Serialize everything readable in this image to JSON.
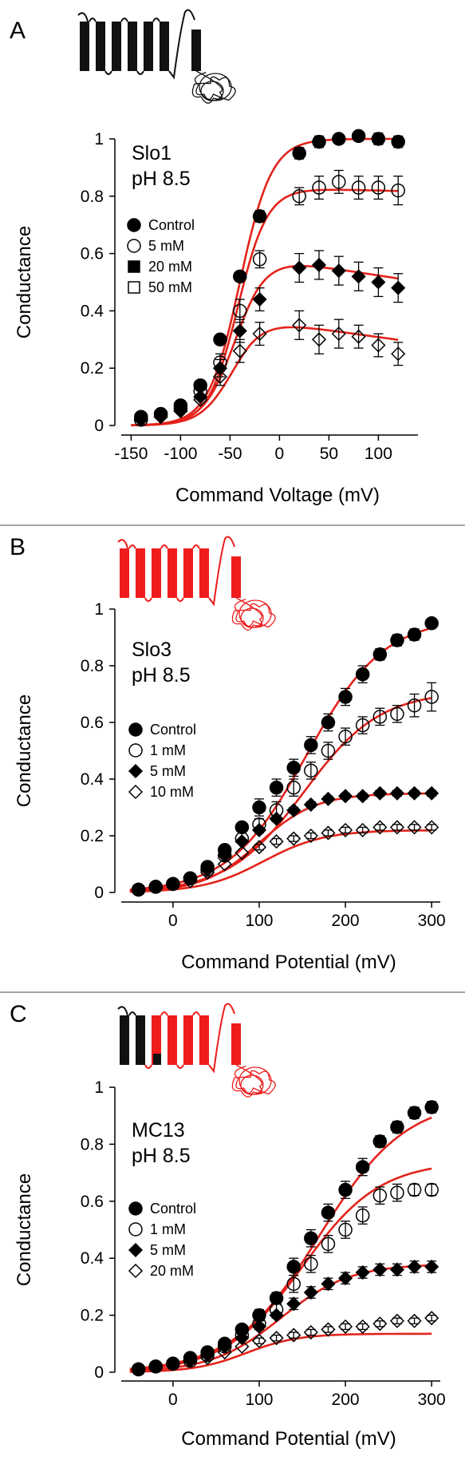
{
  "colors": {
    "fit_line": "#e3231b",
    "marker": "#000000",
    "black_channel": "#111111",
    "red_channel": "#ee1c1c",
    "divider": "#8a8a8a"
  },
  "chart_data": [
    {
      "type": "scatter",
      "panel_letter": "A",
      "annotation": [
        "Slo1",
        "pH 8.5"
      ],
      "xlabel": "Command Voltage (mV)",
      "ylabel": "Conductance",
      "xlim": [
        -160,
        140
      ],
      "ylim": [
        0,
        1
      ],
      "xticks": [
        -150,
        -100,
        -50,
        0,
        50,
        100
      ],
      "xtick_labels": [
        "-150",
        "-100",
        "-50",
        "0",
        "50",
        "100"
      ],
      "yticks": [
        0,
        0.2,
        0.4,
        0.6,
        0.8,
        1
      ],
      "ytick_labels": [
        "0",
        "0.2",
        "0.4",
        "0.6",
        "0.8",
        "1"
      ],
      "legend": [
        "Control",
        "5 mM",
        "20 mM",
        "50 mM"
      ],
      "legend_placement": "left",
      "channel_diagram": "black",
      "series": [
        {
          "name": "Control",
          "marker": "filled-circle",
          "x": [
            -140,
            -120,
            -100,
            -80,
            -60,
            -40,
            -20,
            20,
            40,
            60,
            80,
            100,
            120
          ],
          "y": [
            0.03,
            0.04,
            0.07,
            0.14,
            0.3,
            0.52,
            0.73,
            0.95,
            0.99,
            1.0,
            1.01,
            1.0,
            0.99
          ],
          "err": [
            0,
            0,
            0,
            0,
            0,
            0,
            0.02,
            0.02,
            0.02,
            0,
            0,
            0.02,
            0.02
          ]
        },
        {
          "name": "5 mM",
          "marker": "open-circle",
          "x": [
            -140,
            -120,
            -100,
            -80,
            -60,
            -40,
            -20,
            20,
            40,
            60,
            80,
            100,
            120
          ],
          "y": [
            0.02,
            0.04,
            0.06,
            0.12,
            0.22,
            0.4,
            0.58,
            0.8,
            0.83,
            0.85,
            0.83,
            0.83,
            0.82
          ],
          "err": [
            0,
            0,
            0,
            0,
            0.03,
            0.04,
            0.03,
            0.03,
            0.04,
            0.04,
            0.04,
            0.04,
            0.05
          ]
        },
        {
          "name": "20 mM",
          "marker": "filled-diamond",
          "x": [
            -140,
            -120,
            -100,
            -80,
            -60,
            -40,
            -20,
            20,
            40,
            60,
            80,
            100,
            120
          ],
          "y": [
            0.02,
            0.03,
            0.05,
            0.1,
            0.2,
            0.33,
            0.44,
            0.55,
            0.56,
            0.54,
            0.52,
            0.5,
            0.48
          ],
          "err": [
            0,
            0,
            0,
            0,
            0.03,
            0.04,
            0.04,
            0.05,
            0.05,
            0.05,
            0.05,
            0.05,
            0.05
          ]
        },
        {
          "name": "50 mM",
          "marker": "open-diamond",
          "x": [
            -140,
            -120,
            -100,
            -80,
            -60,
            -40,
            -20,
            20,
            40,
            60,
            80,
            100,
            120
          ],
          "y": [
            0.02,
            0.03,
            0.05,
            0.09,
            0.17,
            0.26,
            0.32,
            0.35,
            0.3,
            0.32,
            0.31,
            0.28,
            0.25
          ],
          "err": [
            0,
            0,
            0,
            0,
            0.03,
            0.04,
            0.04,
            0.05,
            0.05,
            0.05,
            0.04,
            0.04,
            0.04
          ]
        }
      ],
      "fits": [
        {
          "gmax": 1.0,
          "vh": -40,
          "k": 16,
          "decay": 0
        },
        {
          "gmax": 0.83,
          "vh": -42,
          "k": 15,
          "decay": 0.0001
        },
        {
          "gmax": 0.59,
          "vh": -45,
          "k": 16,
          "decay": 0.0009
        },
        {
          "gmax": 0.37,
          "vh": -48,
          "k": 16,
          "decay": 0.0013
        }
      ]
    },
    {
      "type": "scatter",
      "panel_letter": "B",
      "annotation": [
        "Slo3",
        "pH 8.5"
      ],
      "xlabel": "Command Potential (mV)",
      "ylabel": "Conductance",
      "xlim": [
        -60,
        310
      ],
      "ylim": [
        0,
        1
      ],
      "xticks": [
        0,
        100,
        200,
        300
      ],
      "xtick_labels": [
        "0",
        "100",
        "200",
        "300"
      ],
      "yticks": [
        0,
        0.2,
        0.4,
        0.6,
        0.8,
        1
      ],
      "ytick_labels": [
        "0",
        "0.2",
        "0.4",
        "0.6",
        "0.8",
        "1"
      ],
      "legend": [
        "Control",
        "1 mM",
        "5 mM",
        "10 mM"
      ],
      "legend_placement": "left",
      "channel_diagram": "red",
      "series": [
        {
          "name": "Control",
          "marker": "filled-circle",
          "x": [
            -40,
            -20,
            0,
            20,
            40,
            60,
            80,
            100,
            120,
            140,
            160,
            180,
            200,
            220,
            240,
            260,
            280,
            300
          ],
          "y": [
            0.01,
            0.02,
            0.03,
            0.05,
            0.09,
            0.15,
            0.23,
            0.3,
            0.37,
            0.44,
            0.52,
            0.6,
            0.69,
            0.77,
            0.84,
            0.89,
            0.91,
            0.95
          ],
          "err": [
            0,
            0,
            0,
            0,
            0,
            0,
            0,
            0.03,
            0.03,
            0.03,
            0.03,
            0.03,
            0.03,
            0.03,
            0.02,
            0.02,
            0.02,
            0
          ]
        },
        {
          "name": "1 mM",
          "marker": "open-circle",
          "x": [
            -40,
            -20,
            0,
            20,
            40,
            60,
            80,
            100,
            120,
            140,
            160,
            180,
            200,
            220,
            240,
            260,
            280,
            300
          ],
          "y": [
            0.01,
            0.02,
            0.03,
            0.05,
            0.08,
            0.13,
            0.19,
            0.24,
            0.29,
            0.37,
            0.43,
            0.5,
            0.55,
            0.59,
            0.62,
            0.63,
            0.66,
            0.69
          ],
          "err": [
            0,
            0,
            0,
            0,
            0,
            0,
            0,
            0.02,
            0.03,
            0.03,
            0.03,
            0.03,
            0.03,
            0.03,
            0.03,
            0.03,
            0.04,
            0.05
          ]
        },
        {
          "name": "5 mM",
          "marker": "filled-diamond",
          "x": [
            -40,
            -20,
            0,
            20,
            40,
            60,
            80,
            100,
            120,
            140,
            160,
            180,
            200,
            220,
            240,
            260,
            280,
            300
          ],
          "y": [
            0.01,
            0.02,
            0.03,
            0.05,
            0.08,
            0.13,
            0.18,
            0.22,
            0.26,
            0.29,
            0.31,
            0.33,
            0.34,
            0.34,
            0.35,
            0.35,
            0.35,
            0.35
          ],
          "err": [
            0,
            0,
            0,
            0,
            0,
            0,
            0,
            0.01,
            0.01,
            0.01,
            0.01,
            0.01,
            0.01,
            0.01,
            0.01,
            0.01,
            0.01,
            0.01
          ]
        },
        {
          "name": "10 mM",
          "marker": "open-diamond",
          "x": [
            -40,
            -20,
            0,
            20,
            40,
            60,
            80,
            100,
            120,
            140,
            160,
            180,
            200,
            220,
            240,
            260,
            280,
            300
          ],
          "y": [
            0.01,
            0.02,
            0.03,
            0.04,
            0.07,
            0.1,
            0.14,
            0.16,
            0.18,
            0.19,
            0.2,
            0.21,
            0.22,
            0.22,
            0.23,
            0.23,
            0.23,
            0.23
          ],
          "err": [
            0,
            0,
            0,
            0,
            0,
            0,
            0,
            0.01,
            0.01,
            0.01,
            0.01,
            0.01,
            0.01,
            0.01,
            0.01,
            0.01,
            0.01,
            0.01
          ]
        }
      ],
      "fits": [
        {
          "gmax": 0.97,
          "vh": 155,
          "k": 45,
          "decay": 0
        },
        {
          "gmax": 0.71,
          "vh": 152,
          "k": 44,
          "decay": 0
        },
        {
          "gmax": 0.35,
          "vh": 100,
          "k": 33,
          "decay": 0
        },
        {
          "gmax": 0.22,
          "vh": 105,
          "k": 35,
          "decay": 0
        }
      ]
    },
    {
      "type": "scatter",
      "panel_letter": "C",
      "annotation": [
        "MC13",
        "pH 8.5"
      ],
      "xlabel": "Command Potential (mV)",
      "ylabel": "Conductance",
      "xlim": [
        -60,
        310
      ],
      "ylim": [
        0,
        1
      ],
      "xticks": [
        0,
        100,
        200,
        300
      ],
      "xtick_labels": [
        "0",
        "100",
        "200",
        "300"
      ],
      "yticks": [
        0,
        0.2,
        0.4,
        0.6,
        0.8,
        1
      ],
      "ytick_labels": [
        "0",
        "0.2",
        "0.4",
        "0.6",
        "0.8",
        "1"
      ],
      "legend": [
        "Control",
        "1 mM",
        "5 mM",
        "20 mM"
      ],
      "legend_placement": "left",
      "channel_diagram": "mixed",
      "series": [
        {
          "name": "Control",
          "marker": "filled-circle",
          "x": [
            -40,
            -20,
            0,
            20,
            40,
            60,
            80,
            100,
            120,
            140,
            160,
            180,
            200,
            220,
            240,
            260,
            280,
            300
          ],
          "y": [
            0.01,
            0.02,
            0.03,
            0.05,
            0.07,
            0.1,
            0.15,
            0.2,
            0.26,
            0.37,
            0.47,
            0.56,
            0.64,
            0.72,
            0.81,
            0.86,
            0.91,
            0.93
          ],
          "err": [
            0,
            0,
            0,
            0,
            0,
            0,
            0,
            0.02,
            0.02,
            0.03,
            0.03,
            0.03,
            0.03,
            0.03,
            0.02,
            0.02,
            0.02,
            0.02
          ]
        },
        {
          "name": "1 mM",
          "marker": "open-circle",
          "x": [
            -40,
            -20,
            0,
            20,
            40,
            60,
            80,
            100,
            120,
            140,
            160,
            180,
            200,
            220,
            240,
            260,
            280,
            300
          ],
          "y": [
            0.01,
            0.02,
            0.03,
            0.04,
            0.06,
            0.09,
            0.13,
            0.17,
            0.22,
            0.31,
            0.38,
            0.45,
            0.5,
            0.55,
            0.62,
            0.63,
            0.64,
            0.64
          ],
          "err": [
            0,
            0,
            0,
            0,
            0,
            0,
            0,
            0.02,
            0.02,
            0.03,
            0.03,
            0.03,
            0.03,
            0.03,
            0.03,
            0.03,
            0.02,
            0.02
          ]
        },
        {
          "name": "5 mM",
          "marker": "filled-diamond",
          "x": [
            -40,
            -20,
            0,
            20,
            40,
            60,
            80,
            100,
            120,
            140,
            160,
            180,
            200,
            220,
            240,
            260,
            280,
            300
          ],
          "y": [
            0.01,
            0.02,
            0.03,
            0.04,
            0.06,
            0.09,
            0.12,
            0.16,
            0.2,
            0.24,
            0.28,
            0.31,
            0.33,
            0.35,
            0.36,
            0.36,
            0.37,
            0.37
          ],
          "err": [
            0,
            0,
            0,
            0,
            0,
            0,
            0,
            0.01,
            0.01,
            0.02,
            0.02,
            0.02,
            0.02,
            0.02,
            0.02,
            0.02,
            0.02,
            0.02
          ]
        },
        {
          "name": "20 mM",
          "marker": "open-diamond",
          "x": [
            -40,
            -20,
            0,
            20,
            40,
            60,
            80,
            100,
            120,
            140,
            160,
            180,
            200,
            220,
            240,
            260,
            280,
            300
          ],
          "y": [
            0.01,
            0.02,
            0.03,
            0.04,
            0.05,
            0.07,
            0.09,
            0.11,
            0.12,
            0.13,
            0.14,
            0.15,
            0.16,
            0.16,
            0.17,
            0.18,
            0.18,
            0.19
          ],
          "err": [
            0,
            0,
            0,
            0,
            0,
            0,
            0,
            0.01,
            0.01,
            0.01,
            0.01,
            0.01,
            0.01,
            0.01,
            0.01,
            0.01,
            0.01,
            0.01
          ]
        }
      ],
      "fits": [
        {
          "gmax": 0.96,
          "vh": 170,
          "k": 50,
          "decay": 0
        },
        {
          "gmax": 0.74,
          "vh": 150,
          "k": 45,
          "decay": 0
        },
        {
          "gmax": 0.38,
          "vh": 125,
          "k": 40,
          "decay": 0
        },
        {
          "gmax": 0.135,
          "vh": 85,
          "k": 30,
          "decay": 0
        }
      ]
    }
  ]
}
